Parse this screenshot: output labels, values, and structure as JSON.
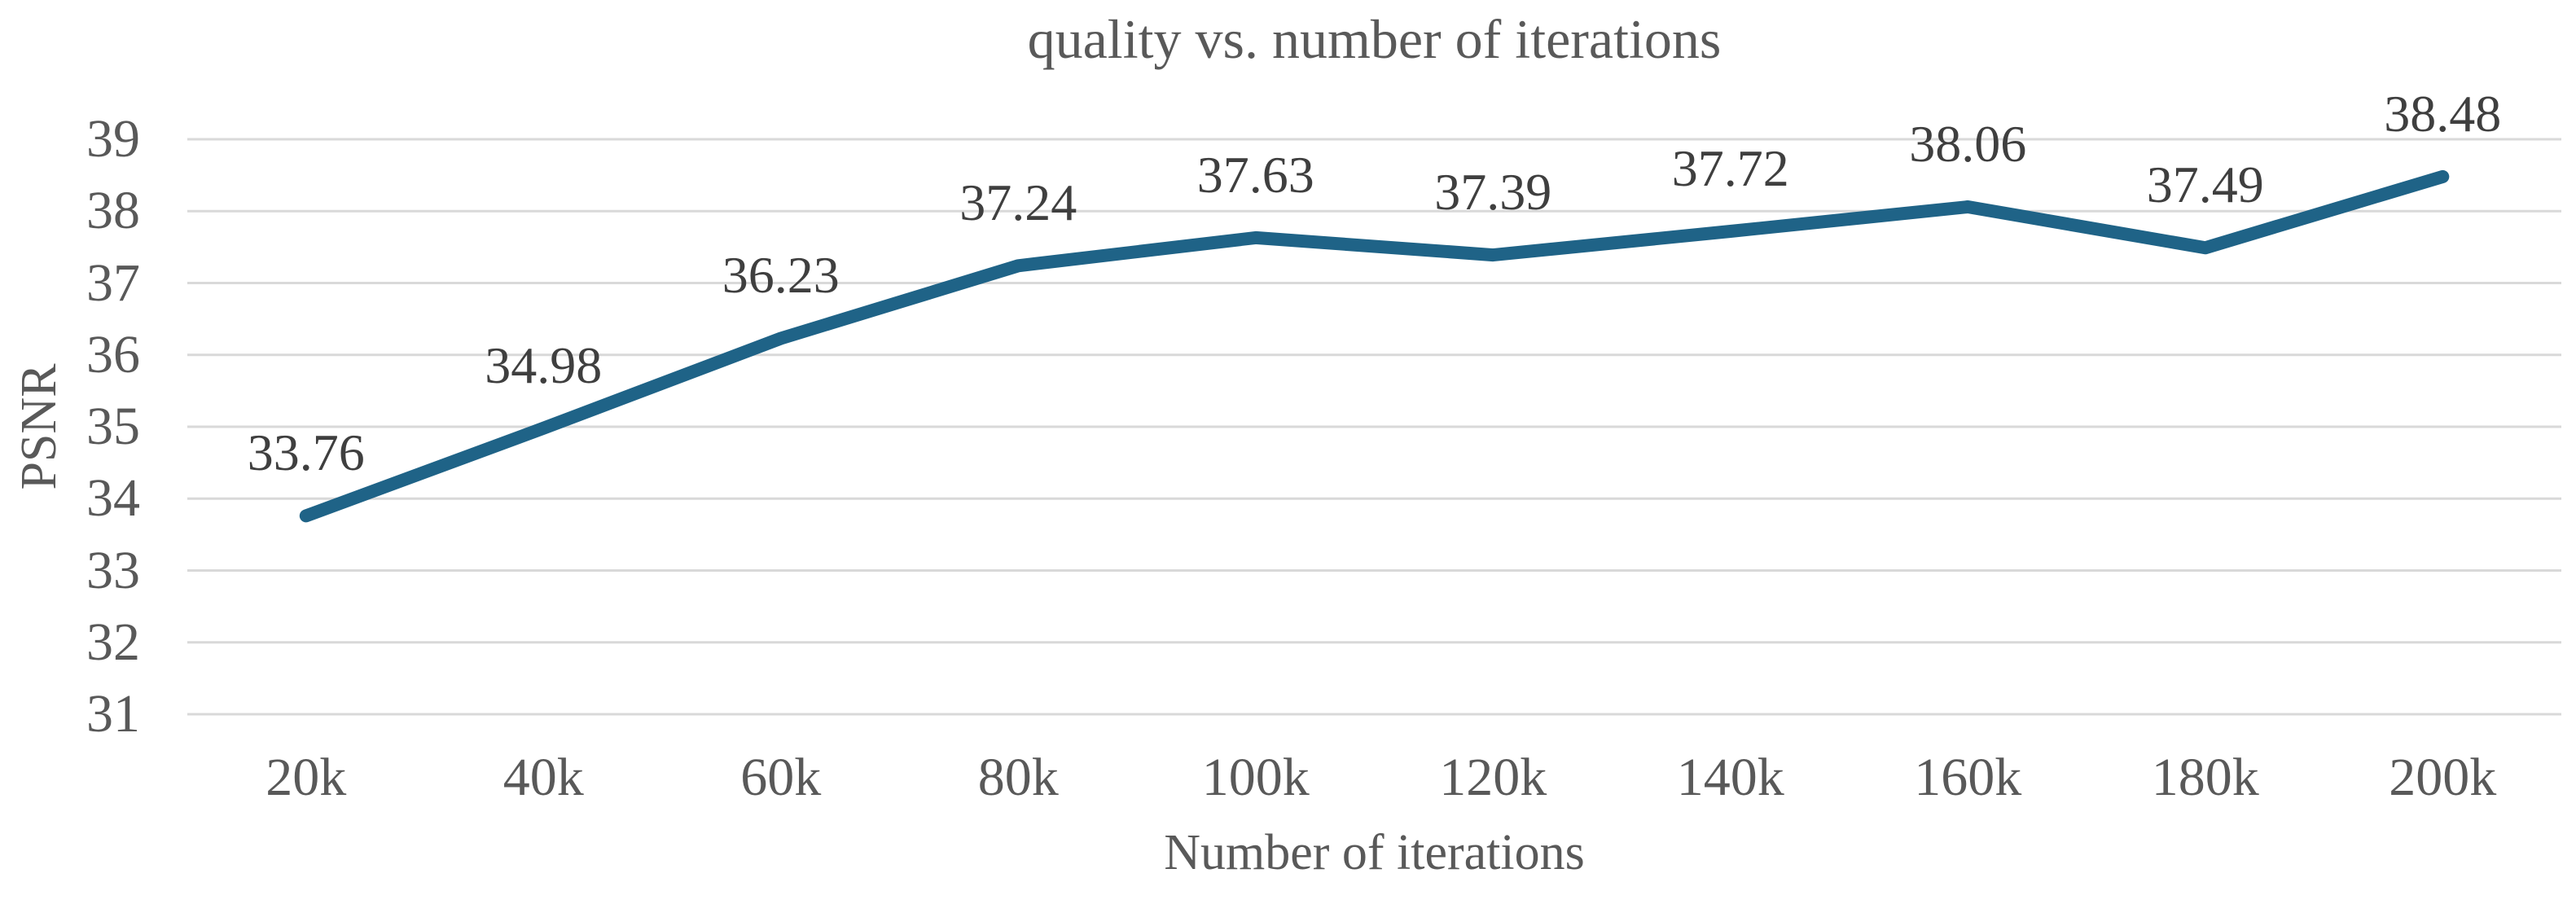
{
  "chart_data": {
    "type": "line",
    "title": "quality vs. number of iterations",
    "xlabel": "Number of iterations",
    "ylabel": "PSNR",
    "categories": [
      "20k",
      "40k",
      "60k",
      "80k",
      "100k",
      "120k",
      "140k",
      "160k",
      "180k",
      "200k"
    ],
    "values": [
      33.76,
      34.98,
      36.23,
      37.24,
      37.63,
      37.39,
      37.72,
      38.06,
      37.49,
      38.48
    ],
    "yticks": [
      31,
      32,
      33,
      34,
      35,
      36,
      37,
      38,
      39
    ],
    "ylim": [
      31,
      39
    ],
    "grid": true,
    "legend_position": "none",
    "data_labels_shown": true,
    "colors": {
      "line": "#1f6387",
      "gridline": "#d9d9d9",
      "tick_text": "#595959",
      "title_text": "#595959",
      "data_label_text": "#3f3f3f",
      "background": "#ffffff"
    }
  }
}
